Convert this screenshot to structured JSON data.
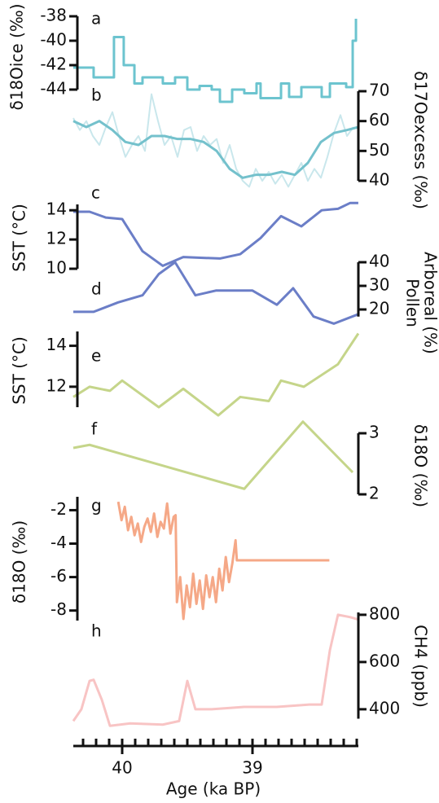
{
  "shared_x": {
    "xlabel": "Age (ka BP)",
    "xlim": [
      40.375,
      38.1875
    ],
    "xticks": [
      40,
      39
    ],
    "xminorticks": [
      40.3,
      40.2,
      40.1,
      39.9,
      39.8,
      39.7,
      39.6,
      39.5,
      39.4,
      39.3,
      39.2,
      39.1,
      38.9,
      38.8,
      38.7,
      38.6,
      38.5,
      38.4,
      38.3,
      38.2
    ]
  },
  "chart_data": [
    {
      "type": "line",
      "label": "a",
      "ylabel": "δ18Oice (‰)",
      "axis_side": "left",
      "step": true,
      "ylim": [
        -38,
        -44
      ],
      "yticks": [
        -38,
        -40,
        -42,
        -44
      ],
      "series": [
        {
          "color": "#6cc4cf",
          "x": [
            40.375,
            40.219,
            40.063,
            39.988,
            39.906,
            39.844,
            39.688,
            39.594,
            39.5,
            39.406,
            39.313,
            39.25,
            39.156,
            39.063,
            38.969,
            38.938,
            38.781,
            38.719,
            38.625,
            38.469,
            38.406,
            38.281,
            38.231,
            38.206
          ],
          "values": [
            -42.2,
            -43,
            -39.7,
            -42,
            -43.5,
            -43,
            -43.5,
            -43,
            -44,
            -43.7,
            -44,
            -45,
            -44,
            -44.3,
            -43.5,
            -44.7,
            -43.5,
            -44.6,
            -43.8,
            -44.6,
            -43.5,
            -43.8,
            -40,
            -38.2
          ]
        }
      ]
    },
    {
      "type": "line",
      "label": "b",
      "ylabel": "δ17Oexcess (‰)",
      "axis_side": "right",
      "ylim": [
        70,
        40
      ],
      "yticks": [
        70,
        60,
        50,
        40
      ],
      "series": [
        {
          "color": "#c9e7ec",
          "x": [
            40.375,
            40.325,
            40.275,
            40.225,
            40.175,
            40.125,
            40.075,
            40.025,
            39.975,
            39.925,
            39.875,
            39.825,
            39.775,
            39.725,
            39.675,
            39.625,
            39.575,
            39.525,
            39.475,
            39.425,
            39.375,
            39.325,
            39.275,
            39.225,
            39.175,
            39.125,
            39.075,
            39.025,
            38.975,
            38.925,
            38.875,
            38.825,
            38.775,
            38.725,
            38.675,
            38.625,
            38.575,
            38.525,
            38.475,
            38.425,
            38.375,
            38.325,
            38.275,
            38.225
          ],
          "values": [
            61,
            57,
            60,
            55,
            52,
            58,
            63,
            55,
            48,
            52,
            55,
            50,
            69,
            60,
            52,
            55,
            48,
            57,
            58,
            50,
            55,
            52,
            54,
            46,
            52,
            44,
            40,
            38,
            44,
            40,
            43,
            39,
            42,
            38,
            42,
            46,
            40,
            44,
            41,
            48,
            56,
            62,
            55,
            58
          ]
        },
        {
          "color": "#74c1cc",
          "x": [
            40.375,
            40.275,
            40.175,
            40.075,
            39.975,
            39.875,
            39.775,
            39.675,
            39.575,
            39.475,
            39.375,
            39.275,
            39.175,
            39.075,
            38.975,
            38.875,
            38.775,
            38.675,
            38.575,
            38.475,
            38.375,
            38.275,
            38.1875
          ],
          "values": [
            60,
            58,
            60,
            57,
            53,
            52,
            55,
            55,
            54,
            54,
            53,
            50,
            44,
            41,
            42,
            42,
            43,
            42,
            46,
            53,
            56,
            57,
            58
          ]
        }
      ]
    },
    {
      "type": "line",
      "label": "c",
      "ylabel": "SST (°C)",
      "axis_side": "left",
      "ylim": [
        14.4,
        10
      ],
      "yticks": [
        14,
        12,
        10
      ],
      "series": [
        {
          "color": "#6b7ec7",
          "x": [
            40.375,
            40.25,
            40.125,
            40,
            39.844,
            39.688,
            39.531,
            39.25,
            39.094,
            38.938,
            38.781,
            38.625,
            38.469,
            38.344,
            38.25,
            38.188
          ],
          "values": [
            13.9,
            13.9,
            13.5,
            13.4,
            11.2,
            10.2,
            10.8,
            10.7,
            11.0,
            12.1,
            13.6,
            12.9,
            14.0,
            14.1,
            14.5,
            14.5
          ]
        }
      ]
    },
    {
      "type": "line",
      "label": "d",
      "ylabel": [
        "Pollen",
        "Arboreal (%)"
      ],
      "axis_side": "right",
      "ylim": [
        40,
        17
      ],
      "yticks": [
        40,
        30,
        20
      ],
      "series": [
        {
          "color": "#6b7ec7",
          "x": [
            40.375,
            40.219,
            40.031,
            39.844,
            39.719,
            39.594,
            39.438,
            39.281,
            39,
            38.813,
            38.688,
            38.531,
            38.375,
            38.188
          ],
          "values": [
            19,
            19,
            23,
            26,
            35,
            40,
            26,
            28,
            28,
            22,
            29,
            17,
            14,
            18
          ]
        }
      ]
    },
    {
      "type": "line",
      "label": "e",
      "ylabel": "SST (°C)",
      "axis_side": "left",
      "ylim": [
        14.7,
        11
      ],
      "yticks": [
        14,
        12
      ],
      "series": [
        {
          "color": "#c5d58a",
          "x": [
            40.375,
            40.25,
            40.094,
            40,
            39.719,
            39.531,
            39.263,
            39.094,
            38.875,
            38.781,
            38.606,
            38.344,
            38.188
          ],
          "values": [
            11.5,
            12.0,
            11.8,
            12.3,
            11.0,
            11.9,
            10.6,
            11.5,
            11.3,
            12.3,
            12.0,
            13.1,
            14.6
          ]
        }
      ]
    },
    {
      "type": "line",
      "label": "f",
      "ylabel": "δ18O (‰)",
      "axis_side": "right",
      "ylim": [
        3,
        2
      ],
      "yticks": [
        3,
        2
      ],
      "series": [
        {
          "color": "#c5d58a",
          "x": [
            40.375,
            40.25,
            39.063,
            38.613,
            38.231
          ],
          "values": [
            2.76,
            2.81,
            2.09,
            3.19,
            2.36
          ]
        }
      ]
    },
    {
      "type": "line",
      "label": "g",
      "ylabel": "δ18O (‰)",
      "axis_side": "left",
      "ylim": [
        -1.2,
        -8.6
      ],
      "yticks": [
        -2,
        -4,
        -6,
        -8
      ],
      "series": [
        {
          "color": "#f5a887",
          "x": [
            40.03,
            40.005,
            39.98,
            39.955,
            39.93,
            39.905,
            39.88,
            39.855,
            39.83,
            39.805,
            39.78,
            39.755,
            39.73,
            39.705,
            39.68,
            39.655,
            39.63,
            39.605,
            39.59,
            39.58,
            39.555,
            39.53,
            39.505,
            39.48,
            39.455,
            39.43,
            39.405,
            39.38,
            39.355,
            39.33,
            39.305,
            39.28,
            39.255,
            39.23,
            39.205,
            39.18,
            39.155,
            39.13,
            39.12,
            38.41
          ],
          "values": [
            -1.5,
            -2.6,
            -1.8,
            -3.2,
            -2.4,
            -3.5,
            -2.8,
            -3.9,
            -3.0,
            -2.5,
            -3.3,
            -2.2,
            -3.6,
            -2.7,
            -3.1,
            -1.6,
            -3.4,
            -2.4,
            -2.3,
            -7.5,
            -6.0,
            -8.5,
            -6.5,
            -7.8,
            -5.8,
            -7.6,
            -6.2,
            -7.9,
            -5.9,
            -7.2,
            -6.0,
            -7.5,
            -5.5,
            -6.8,
            -4.8,
            -6.3,
            -5.2,
            -3.8,
            -5.0,
            -5.0
          ]
        }
      ]
    },
    {
      "type": "line",
      "label": "h",
      "ylabel": "CH4 (ppb)",
      "axis_side": "right",
      "ylim": [
        810,
        360
      ],
      "yticks": [
        800,
        600,
        400
      ],
      "series": [
        {
          "color": "#f8c4c4",
          "x": [
            40.375,
            40.313,
            40.25,
            40.219,
            40.156,
            40.094,
            39.938,
            39.688,
            39.563,
            39.5,
            39.438,
            39.313,
            39.063,
            38.813,
            38.563,
            38.469,
            38.406,
            38.344,
            38.25,
            38.188
          ],
          "values": [
            350,
            400,
            520,
            525,
            440,
            330,
            340,
            335,
            350,
            520,
            400,
            400,
            410,
            410,
            420,
            420,
            650,
            800,
            790,
            780
          ]
        }
      ]
    }
  ]
}
